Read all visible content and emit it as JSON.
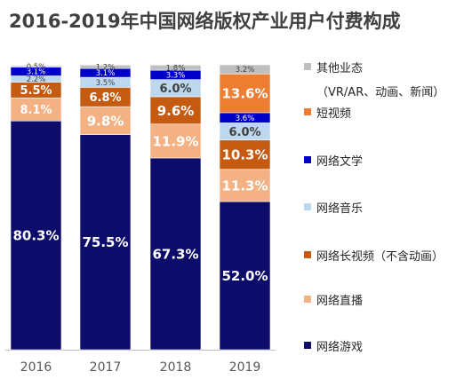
{
  "chart_data": {
    "type": "bar",
    "stacked": true,
    "normalized": true,
    "title": "2016-2019年中国网络版权产业用户付费构成",
    "categories": [
      "2016",
      "2017",
      "2018",
      "2019"
    ],
    "series": [
      {
        "name": "网络游戏",
        "color": "#0d0c6b",
        "values": [
          80.3,
          75.5,
          67.3,
          52.0
        ],
        "labels": [
          "80.3%",
          "75.5%",
          "67.3%",
          "52.0%"
        ]
      },
      {
        "name": "网络直播",
        "color": "#f4b183",
        "values": [
          8.1,
          9.8,
          11.9,
          11.3
        ],
        "labels": [
          "8.1%",
          "9.8%",
          "11.9%",
          "11.3%"
        ]
      },
      {
        "name": "网络长视频（不含动画）",
        "color": "#c55a11",
        "values": [
          5.5,
          6.8,
          9.6,
          10.3
        ],
        "labels": [
          "5.5%",
          "6.8%",
          "9.6%",
          "10.3%"
        ]
      },
      {
        "name": "网络音乐",
        "color": "#bdd7ee",
        "values": [
          2.2,
          3.5,
          6.0,
          6.0
        ],
        "labels": [
          "2.2%",
          "3.5%",
          "6.0%",
          "6.0%"
        ]
      },
      {
        "name": "网络文学",
        "color": "#0000c8",
        "values": [
          3.1,
          3.1,
          3.3,
          3.6
        ],
        "labels": [
          "3.1%",
          "3.1%",
          "3.3%",
          "3.6%"
        ]
      },
      {
        "name": "短视频",
        "color": "#ed7d31",
        "values": [
          0,
          0,
          0,
          13.6
        ],
        "labels": [
          "",
          "",
          "",
          "13.6%"
        ]
      },
      {
        "name": "其他业态",
        "subtitle": "（VR/AR、动画、新闻）",
        "color": "#bfbfbf",
        "values": [
          0.5,
          1.2,
          1.8,
          3.2
        ],
        "labels": [
          "0.5%",
          "1.2%",
          "1.8%",
          "3.2%"
        ]
      }
    ],
    "legend_order": [
      "其他业态",
      "短视频",
      "网络文学",
      "网络音乐",
      "网络长视频（不含动画）",
      "网络直播",
      "网络游戏"
    ],
    "legend_position": "right",
    "ylim": [
      0,
      100
    ],
    "grid": false
  }
}
